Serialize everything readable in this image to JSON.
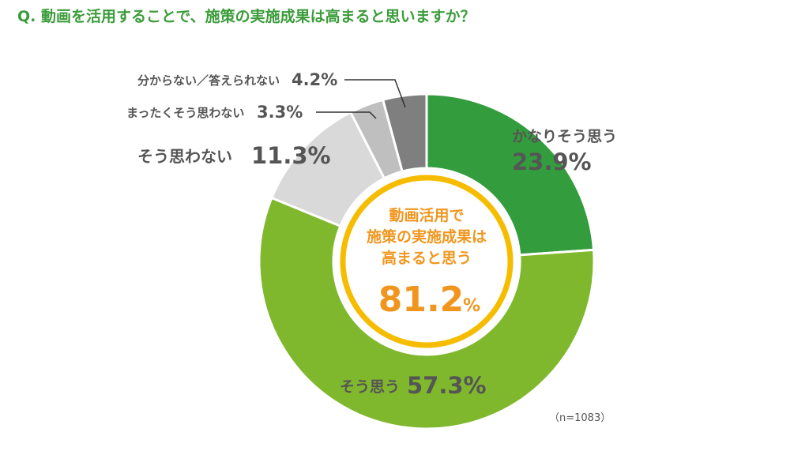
{
  "title": "Q. 動画を活用することで、施策の実施成果は高まると思いますか？",
  "sample_note": "（n=1083）",
  "center": {
    "line1": "動画活用で",
    "line2": "施策の実施成果は",
    "line3": "高まると思う",
    "value": "81.2",
    "unit": "%"
  },
  "colors": {
    "accent": "#f5bc00",
    "center_text": "#f0961e",
    "title": "#3a9c3a"
  },
  "chart_data": {
    "type": "pie",
    "title": "Q. 動画を活用することで、施策の実施成果は高まると思いますか？",
    "categories": [
      "かなりそう思う",
      "そう思う",
      "そう思わない",
      "まったくそう思わない",
      "分からない／答えられない"
    ],
    "values": [
      23.9,
      57.3,
      11.3,
      3.3,
      4.2
    ],
    "value_labels": [
      "23.9%",
      "57.3%",
      "11.3%",
      "3.3%",
      "4.2%"
    ],
    "colors": [
      "#339c3c",
      "#80b82d",
      "#d9d9d9",
      "#bfbfbf",
      "#7f7f7f"
    ],
    "style": "donut"
  }
}
